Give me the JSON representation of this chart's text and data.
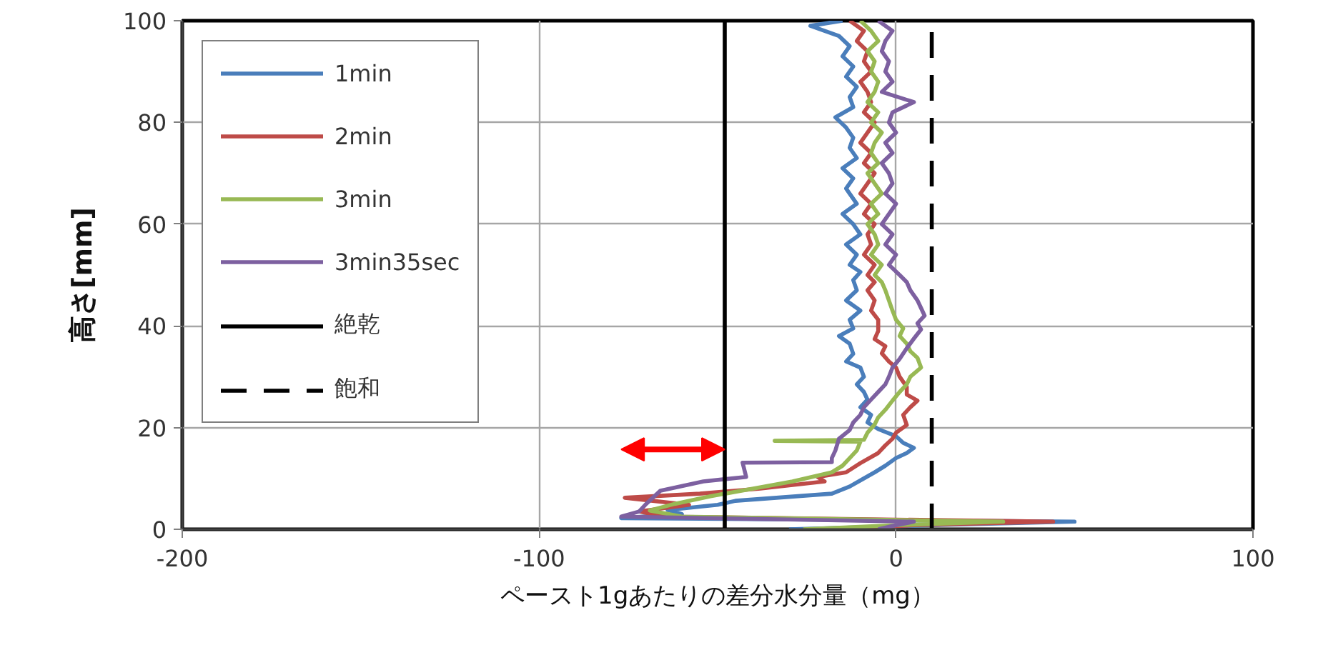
{
  "chart_data": {
    "type": "line",
    "xlabel": "ペースト1gあたりの差分水分量（mg）",
    "ylabel": "高さ[mm]",
    "xlim": [
      -200,
      100
    ],
    "xticks": [
      -200,
      -100,
      0,
      100
    ],
    "ylim": [
      0,
      100
    ],
    "yticks": [
      0,
      20,
      40,
      60,
      80,
      100
    ],
    "grid": true,
    "legend": "top left",
    "series": [
      {
        "name": "1min",
        "color": "#4a7ebb",
        "x": [
          -30,
          10,
          50,
          -77,
          -60,
          -64,
          -50,
          -45,
          -18,
          -13,
          -9,
          -6,
          -3,
          0,
          3,
          5,
          2,
          0,
          -5,
          -8,
          -7,
          -10,
          -8,
          -9,
          -11,
          -9,
          -10,
          -14,
          -12,
          -13,
          -16,
          -12,
          -13,
          -10,
          -14,
          -11,
          -12,
          -10,
          -13,
          -11,
          -14,
          -10,
          -12,
          -15,
          -11,
          -13,
          -14,
          -12,
          -15,
          -11,
          -13,
          -12,
          -14,
          -17,
          -12,
          -13,
          -11,
          -14,
          -12,
          -15,
          -13,
          -16,
          -24,
          -15
        ],
        "values": [
          0,
          0.8,
          1.5,
          2.2,
          3,
          3.8,
          4.8,
          5.6,
          7,
          8.4,
          10,
          11.2,
          12.5,
          14,
          15,
          16,
          17,
          18.3,
          19.7,
          21,
          22.5,
          24,
          25.5,
          27,
          28.5,
          30,
          31.8,
          33,
          34.5,
          36.5,
          38,
          39.5,
          41.2,
          43,
          45,
          47,
          49,
          50.6,
          52,
          54,
          56,
          58,
          60,
          62,
          64,
          66,
          67,
          69,
          71,
          73,
          75,
          77,
          79,
          81,
          83,
          85,
          87,
          89,
          91,
          93,
          95,
          97,
          99,
          100
        ]
      },
      {
        "name": "2min",
        "color": "#be4b48",
        "x": [
          -20,
          5,
          44,
          -65,
          -72,
          -58,
          -76,
          -55,
          -38,
          -20,
          -22,
          -14,
          -10,
          -5,
          -3,
          -1,
          0,
          3,
          2,
          4,
          6,
          3,
          3,
          1,
          0,
          -2,
          -4,
          -3,
          -6,
          -5,
          -5,
          -7,
          -6,
          -8,
          -6,
          -8,
          -6,
          -9,
          -7,
          -8,
          -6,
          -9,
          -7,
          -10,
          -8,
          -6,
          -9,
          -7,
          -10,
          -8,
          -6,
          -9,
          -7,
          -8,
          -10,
          -7,
          -9,
          -8,
          -11,
          -9,
          -13
        ],
        "values": [
          0,
          0.8,
          1.5,
          2.5,
          3.5,
          4.8,
          6.2,
          7,
          8,
          9.4,
          10.3,
          11.2,
          13,
          15,
          16.5,
          17.8,
          19,
          20.5,
          22.5,
          24,
          25.3,
          26.5,
          28,
          30,
          31.8,
          33,
          34.6,
          36,
          37.4,
          39,
          41.2,
          43,
          45,
          47,
          48.6,
          50,
          52,
          54,
          56,
          58,
          60,
          62,
          64,
          66,
          68,
          70,
          72,
          74,
          76,
          78,
          80,
          82,
          84,
          86,
          88,
          90,
          92,
          94,
          96,
          98,
          100
        ]
      },
      {
        "name": "3min",
        "color": "#98b954",
        "x": [
          -26,
          0,
          30,
          -60,
          -69,
          -62,
          -52,
          -40,
          -29,
          -18,
          -15,
          -13,
          -11,
          -10,
          -34,
          -9,
          -8,
          -6,
          -5,
          -3,
          -1,
          1,
          3,
          4,
          7,
          6,
          4,
          3,
          1,
          2,
          0,
          -1,
          -2,
          -3,
          -4,
          -6,
          -4,
          -7,
          -5,
          -6,
          -8,
          -5,
          -7,
          -4,
          -6,
          -8,
          -5,
          -7,
          -6,
          -4,
          -7,
          -5,
          -8,
          -6,
          -5,
          -7,
          -6,
          -8,
          -5,
          -7,
          -10
        ],
        "values": [
          0,
          0.8,
          1.5,
          2.5,
          3.7,
          5,
          6.5,
          8,
          9.4,
          11.2,
          12.5,
          14,
          15.5,
          17.2,
          17.4,
          17.6,
          19,
          20.6,
          22,
          23.5,
          25.3,
          27,
          28.5,
          30,
          31.8,
          33.7,
          35,
          36.5,
          38,
          39.5,
          41.2,
          43,
          45,
          47,
          48.6,
          50,
          52,
          54,
          56,
          58,
          60,
          62,
          64,
          66,
          68,
          70,
          72,
          74,
          76,
          78,
          80,
          82,
          84,
          86,
          88,
          90,
          92,
          94,
          96,
          98,
          100
        ]
      },
      {
        "name": "3min35sec",
        "color": "#7d60a0",
        "x": [
          -5,
          0,
          5,
          -77,
          -72,
          -70,
          -68,
          -66,
          -60,
          -54,
          -42,
          -43,
          -18,
          -18,
          -17,
          -16,
          -13,
          -12,
          -10,
          -9,
          -7,
          -5,
          -3,
          -2,
          -1,
          1,
          3,
          5,
          7,
          6,
          8,
          7,
          6,
          4,
          3,
          1,
          -2,
          0,
          -3,
          -1,
          -4,
          -2,
          0,
          -3,
          -1,
          -2,
          -4,
          -1,
          -3,
          0,
          -2,
          -1,
          5,
          -4,
          -1,
          -3,
          -2,
          -4,
          -3,
          -1,
          -5
        ],
        "values": [
          0,
          0.8,
          1.5,
          2.5,
          3.5,
          5,
          6.3,
          7.6,
          8.5,
          9.4,
          10.3,
          13.1,
          13.2,
          14,
          15.5,
          17.8,
          19.5,
          21,
          22.5,
          24,
          25.5,
          27,
          28.5,
          30,
          31.8,
          33.5,
          35.6,
          37.5,
          39.3,
          40.5,
          42,
          43.5,
          45,
          47,
          48.6,
          50,
          52,
          54,
          56,
          58,
          60,
          62,
          64,
          66,
          68,
          70,
          72,
          74,
          76,
          78,
          80,
          82,
          84,
          86,
          88,
          90,
          92,
          94,
          96,
          98,
          100
        ]
      },
      {
        "name": "絶乾",
        "color": "#000000",
        "x": [
          -48,
          -48
        ],
        "values": [
          0,
          100
        ]
      },
      {
        "name": "飽和",
        "color": "#000000",
        "line_style": "dashed",
        "x": [
          10,
          10
        ],
        "values": [
          0,
          100
        ]
      }
    ]
  }
}
